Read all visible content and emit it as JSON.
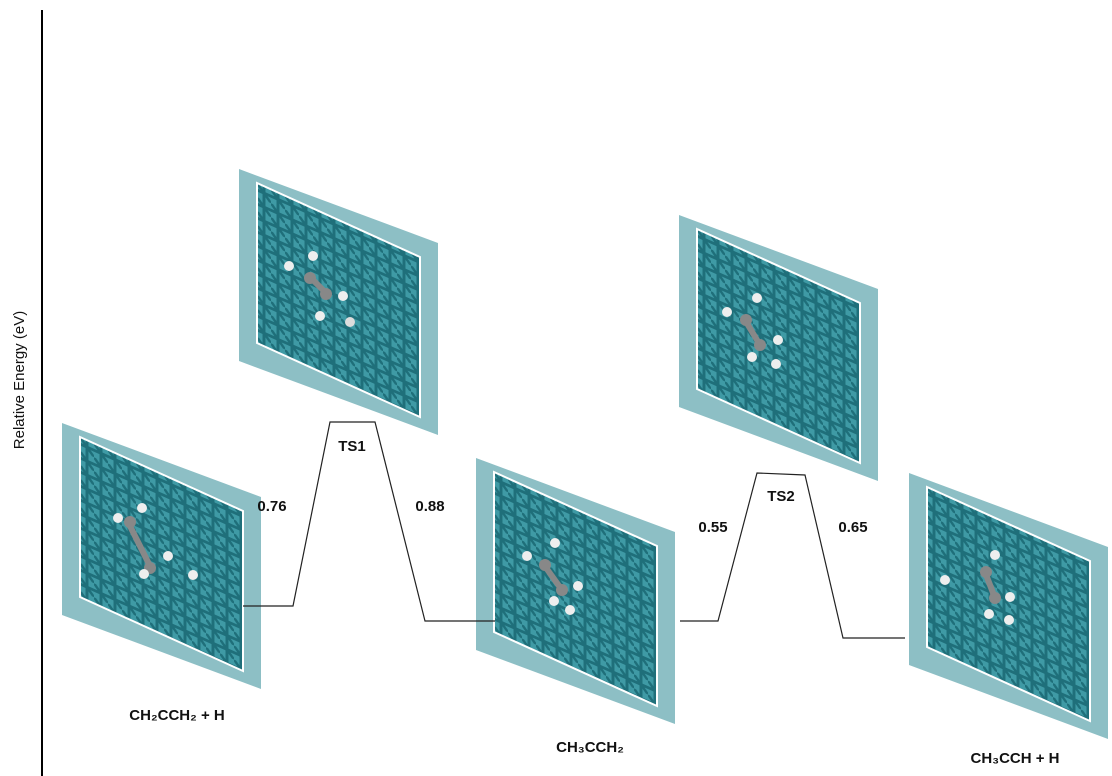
{
  "axis_label": "Relative Energy (eV)",
  "states": [
    "CH₂CCH₂ + H",
    "CH₃CCH₂",
    "CH₃CCH + H"
  ],
  "transition_states": [
    "TS1",
    "TS2"
  ],
  "barriers": [
    "0.76",
    "0.88",
    "0.55",
    "0.65"
  ]
}
